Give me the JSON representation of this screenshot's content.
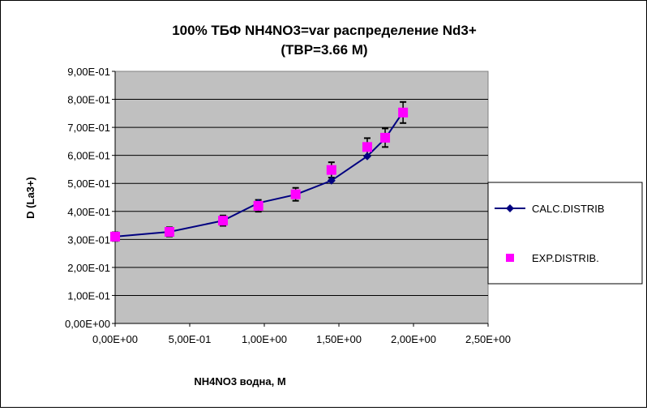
{
  "chart_data": {
    "type": "line",
    "title_line1": "100%  ТБФ  NH4NO3=var распределение Nd3+",
    "title_line2": "(TBP=3.66 M)",
    "xlabel": "NH4NO3  водна, М",
    "ylabel": "D (La3+)",
    "xlim": [
      0,
      2.5
    ],
    "ylim": [
      0,
      0.9
    ],
    "x_ticks": [
      "0,00E+00",
      "5,00E-01",
      "1,00E+00",
      "1,50E+00",
      "2,00E+00",
      "2,50E+00"
    ],
    "y_ticks": [
      "0,00E+00",
      "1,00E-01",
      "2,00E-01",
      "3,00E-01",
      "4,00E-01",
      "5,00E-01",
      "6,00E-01",
      "7,00E-01",
      "8,00E-01",
      "9,00E-01"
    ],
    "grid": true,
    "legend_position": "right",
    "series": [
      {
        "name": "CALC.DISTRIB",
        "color": "#000080",
        "marker": "diamond",
        "x": [
          0,
          0.364,
          0.723,
          0.96,
          1.21,
          1.45,
          1.69,
          1.81,
          1.93
        ],
        "y": [
          0.31,
          0.327,
          0.367,
          0.43,
          0.46,
          0.51,
          0.597,
          0.66,
          0.755
        ]
      },
      {
        "name": "EXP.DISTRIB.",
        "color": "#ff00ff",
        "marker": "square",
        "error_pct": 5,
        "x": [
          0,
          0.364,
          0.723,
          0.96,
          1.21,
          1.45,
          1.69,
          1.81,
          1.93
        ],
        "y": [
          0.31,
          0.327,
          0.367,
          0.42,
          0.461,
          0.548,
          0.63,
          0.663,
          0.753
        ]
      }
    ]
  }
}
